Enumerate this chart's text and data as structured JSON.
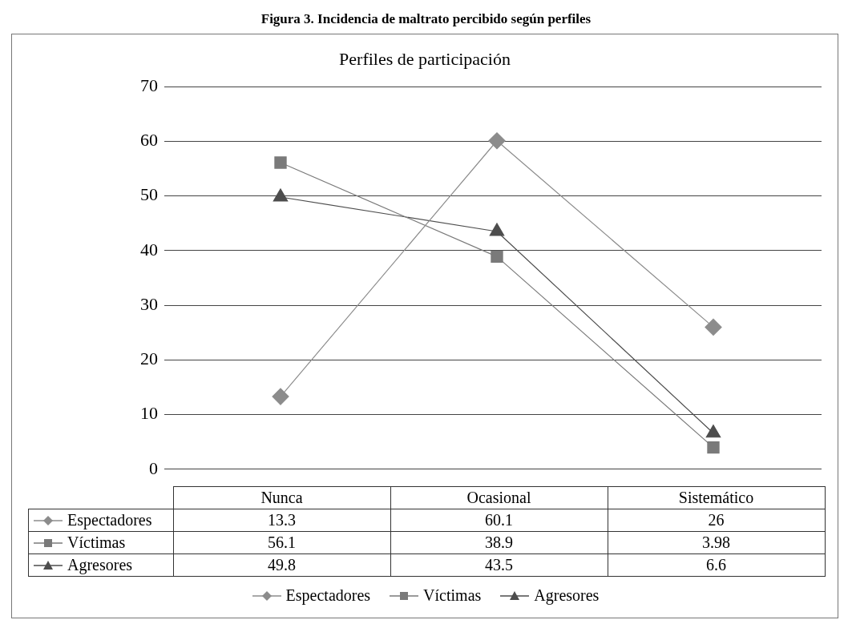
{
  "chart_data": {
    "type": "line",
    "title": "Figura 3. Incidencia de maltrato percibido según perfiles",
    "xlabel": "Perfiles de participación",
    "categories": [
      "Nunca",
      "Ocasional",
      "Sistemático"
    ],
    "series": [
      {
        "name": "Espectadores",
        "color": "#8c8c8c",
        "marker": "diamond",
        "values": [
          13.3,
          60.1,
          26
        ]
      },
      {
        "name": "Víctimas",
        "color": "#7a7a7a",
        "marker": "square",
        "values": [
          56.1,
          38.9,
          3.98
        ]
      },
      {
        "name": "Agresores",
        "color": "#4d4d4d",
        "marker": "triangle",
        "values": [
          49.8,
          43.5,
          6.6
        ]
      }
    ],
    "ylim": [
      0,
      70
    ],
    "yticks": [
      0,
      10,
      20,
      30,
      40,
      50,
      60,
      70
    ],
    "grid": "y",
    "legend": "bottom",
    "data_labels": true,
    "line_style": "solid"
  }
}
